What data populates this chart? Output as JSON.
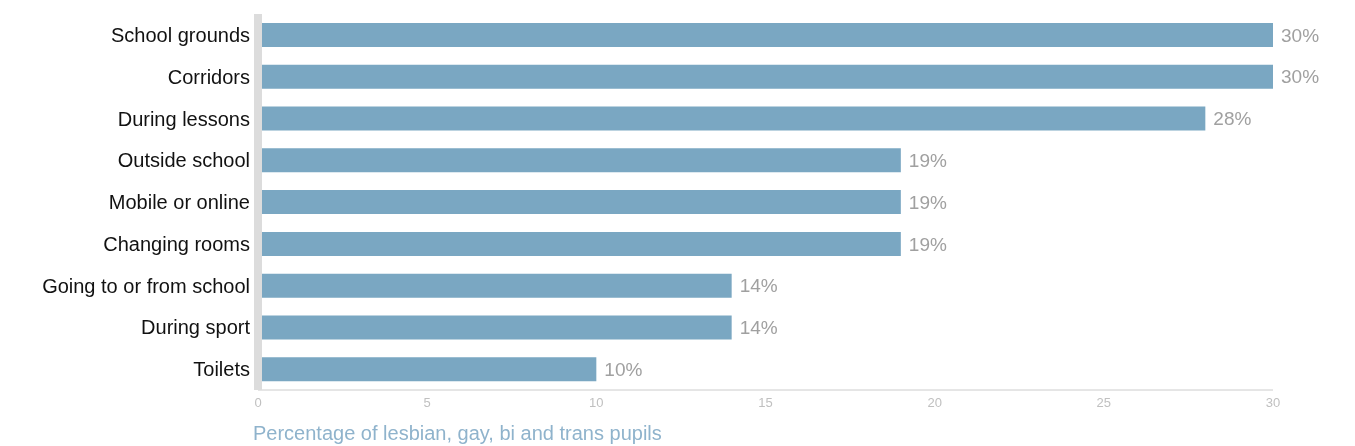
{
  "chart_data": {
    "type": "bar",
    "orientation": "horizontal",
    "xlabel": "Percentage of lesbian, gay, bi and trans pupils",
    "categories": [
      "School grounds",
      "Corridors",
      "During lessons",
      "Outside school",
      "Mobile or online",
      "Changing rooms",
      "Going to or from school",
      "During sport",
      "Toilets"
    ],
    "values": [
      30,
      30,
      28,
      19,
      19,
      19,
      14,
      14,
      10
    ],
    "value_labels": [
      "30%",
      "30%",
      "28%",
      "19%",
      "19%",
      "19%",
      "14%",
      "14%",
      "10%"
    ],
    "color": "#7aa7c2",
    "xlim": [
      0,
      30
    ],
    "xticks": [
      0,
      5,
      10,
      15,
      20,
      25,
      30
    ],
    "grid": false,
    "legend": false
  }
}
